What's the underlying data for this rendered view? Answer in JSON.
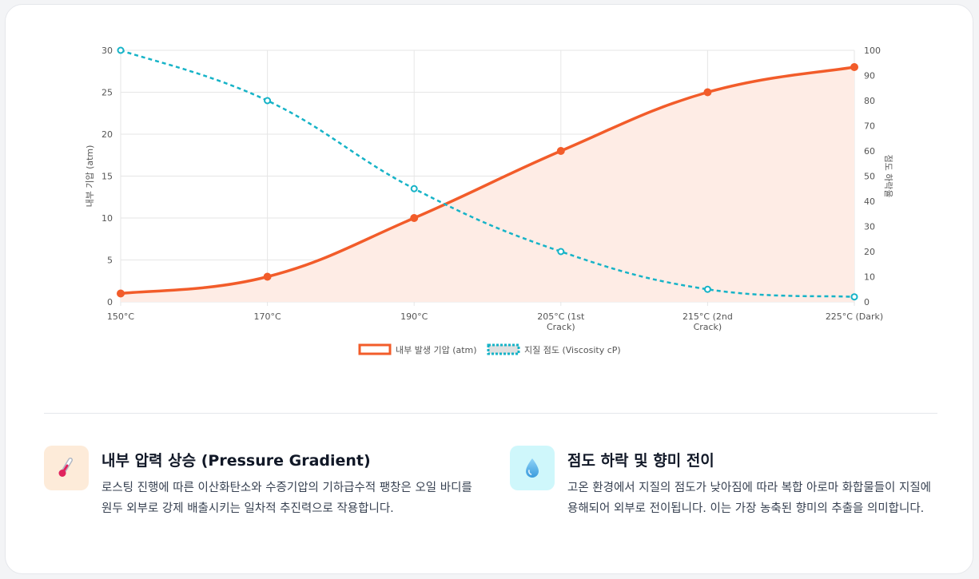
{
  "chart_data": {
    "type": "line",
    "categories": [
      "150°C",
      "170°C",
      "190°C",
      "205°C (1st Crack)",
      "215°C (2nd Crack)",
      "225°C (Dark)"
    ],
    "series": [
      {
        "name": "내부 발생 기압 (atm)",
        "axis": "left",
        "style": "solid",
        "fill": true,
        "color": "#f25c2a",
        "fill_color": "#feece5",
        "values": [
          1,
          3,
          10,
          18,
          25,
          28
        ]
      },
      {
        "name": "지질 점도 (Viscosity cP)",
        "axis": "right",
        "style": "dashed",
        "fill": false,
        "color": "#16b3c7",
        "values": [
          100,
          80,
          45,
          20,
          5,
          2
        ]
      }
    ],
    "y_left": {
      "label": "내부 기압 (atm)",
      "min": 0,
      "max": 30,
      "ticks": [
        0,
        5,
        10,
        15,
        20,
        25,
        30
      ]
    },
    "y_right": {
      "label": "점도 하락율",
      "min": 0,
      "max": 100,
      "ticks": [
        0,
        10,
        20,
        30,
        40,
        50,
        60,
        70,
        80,
        90,
        100
      ]
    },
    "grid": true,
    "legend_position": "bottom"
  },
  "features": [
    {
      "icon": "thermometer-icon",
      "icon_glyph": "🌡️",
      "icon_bg": "#fdebd9",
      "title": "내부 압력 상승 (Pressure Gradient)",
      "description": "로스팅 진행에 따른 이산화탄소와 수증기압의 기하급수적 팽창은 오일 바디를 원두 외부로 강제 배출시키는 일차적 추진력으로 작용합니다."
    },
    {
      "icon": "droplet-icon",
      "icon_glyph": "💧",
      "icon_bg": "#cff7fb",
      "title": "점도 하락 및 향미 전이",
      "description": "고온 환경에서 지질의 점도가 낮아짐에 따라 복합 아로마 화합물들이 지질에 용해되어 외부로 전이됩니다. 이는 가장 농축된 향미의 추출을 의미합니다."
    }
  ]
}
